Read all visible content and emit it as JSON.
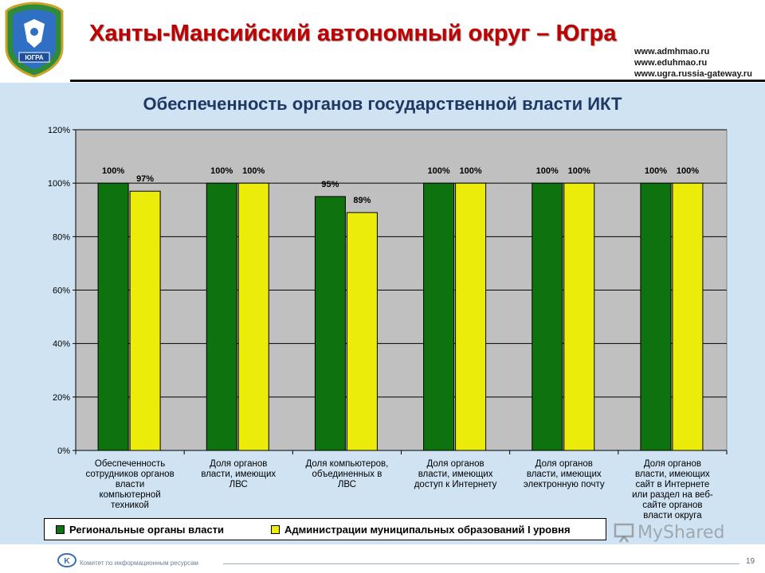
{
  "header": {
    "title": "Ханты-Мансийский автономный округ – Югра",
    "links": [
      "www.admhmao.ru",
      "www.eduhmao.ru",
      "www.ugra.russia-gateway.ru"
    ],
    "emblem_text": "ЮГРА"
  },
  "chart_data": {
    "type": "bar",
    "title": "Обеспеченность органов государственной власти ИКТ",
    "xlabel": "",
    "ylabel": "",
    "ylim": [
      0,
      120
    ],
    "y_ticks": [
      "0%",
      "20%",
      "40%",
      "60%",
      "80%",
      "100%",
      "120%"
    ],
    "y_tick_values": [
      0,
      20,
      40,
      60,
      80,
      100,
      120
    ],
    "grid": "horizontal",
    "legend_position": "bottom",
    "categories": [
      "Обеспеченность сотрудников органов власти компьютерной техникой",
      "Доля органов власти, имеющих ЛВС",
      "Доля компьютеров, объединенных в ЛВС",
      "Доля органов власти, имеющих доступ к Интернету",
      "Доля органов власти, имеющих электронную почту",
      "Доля органов власти, имеющих сайт в Интернете или раздел на веб-сайте органов власти округа"
    ],
    "category_lines": [
      [
        "Обеспеченность",
        "сотрудников органов",
        "власти",
        "компьютерной",
        "техникой"
      ],
      [
        "Доля органов",
        "власти, имеющих",
        "ЛВС"
      ],
      [
        "Доля компьютеров,",
        "объединенных в",
        "ЛВС"
      ],
      [
        "Доля органов",
        "власти, имеющих",
        "доступ к Интернету"
      ],
      [
        "Доля органов",
        "власти, имеющих",
        "электронную почту"
      ],
      [
        "Доля органов",
        "власти, имеющих",
        "сайт в Интернете",
        "или раздел на веб-",
        "сайте органов",
        "власти округа"
      ]
    ],
    "series": [
      {
        "name": "Региональные органы власти",
        "color": "#0e720e",
        "values": [
          100,
          100,
          95,
          100,
          100,
          100
        ],
        "labels": [
          "100%",
          "100%",
          "95%",
          "100%",
          "100%",
          "100%"
        ]
      },
      {
        "name": "Администрации муниципальных образований I уровня",
        "color": "#ecec0a",
        "values": [
          97,
          100,
          89,
          100,
          100,
          100
        ],
        "labels": [
          "97%",
          "100%",
          "89%",
          "100%",
          "100%",
          "100%"
        ]
      }
    ]
  },
  "footer": {
    "org": "Комитет по информационным ресурсам",
    "page_number": "19"
  },
  "watermark": "MyShared"
}
